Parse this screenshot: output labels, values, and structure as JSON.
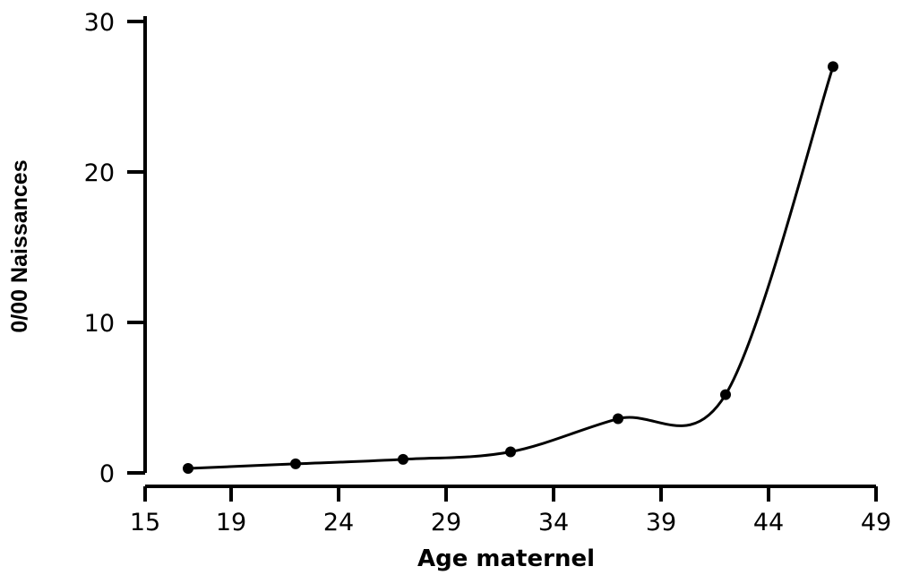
{
  "chart_data": {
    "type": "line",
    "title": "",
    "xlabel": "Age maternel",
    "ylabel": "0/00 Naissances",
    "xlim": [
      15,
      49
    ],
    "ylim": [
      0,
      30
    ],
    "x_ticks": [
      15,
      19,
      24,
      29,
      34,
      39,
      44,
      49
    ],
    "y_ticks": [
      0,
      10,
      20,
      30
    ],
    "grid": false,
    "legend": "none",
    "series": [
      {
        "x": [
          17,
          22,
          27,
          32,
          37,
          42,
          47
        ],
        "values": [
          0.3,
          0.6,
          0.9,
          1.4,
          3.6,
          5.2,
          27.0
        ]
      }
    ],
    "colors": {
      "line": "#000000",
      "marker": "#000000"
    }
  }
}
